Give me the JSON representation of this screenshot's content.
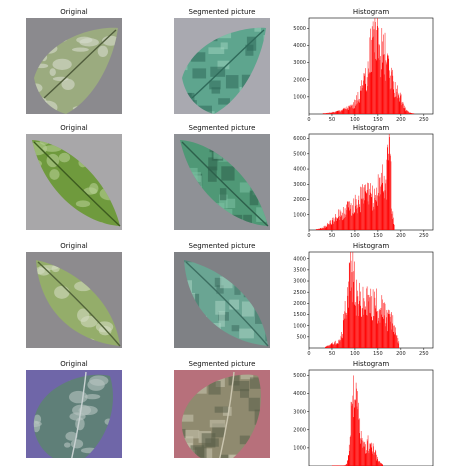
{
  "rows": [
    {
      "titles": {
        "original": "Original",
        "segmented": "Segmented picture",
        "histogram": "Histogram"
      },
      "original_style": {
        "bg": "#8b8a8e",
        "leaf": "#9bab7f",
        "vein": "#4f5c3b",
        "spot": "#d7dccd"
      },
      "segmented_style": {
        "bg": "#a9a9b0",
        "leaf": "#5ea58e",
        "vein": "#2f6a5a",
        "spot": "#9bd2bb"
      },
      "histogram": {
        "type": "bar",
        "xlim": [
          0,
          270
        ],
        "ylim": [
          0,
          5600
        ],
        "xticks": [
          0,
          50,
          100,
          150,
          200,
          250
        ],
        "yticks": [
          1000,
          2000,
          3000,
          4000,
          5000
        ],
        "peaks": [
          {
            "center": 100,
            "height": 400,
            "width": 26
          },
          {
            "center": 118,
            "height": 1100,
            "width": 10
          },
          {
            "center": 140,
            "height": 4000,
            "width": 9
          },
          {
            "center": 160,
            "height": 3100,
            "width": 10
          },
          {
            "center": 185,
            "height": 1500,
            "width": 13
          }
        ],
        "spikes": [
          {
            "x": 139,
            "value": 5400
          },
          {
            "x": 147,
            "value": 4900
          }
        ],
        "range": [
          30,
          228
        ],
        "color": "#ff0000"
      }
    },
    {
      "titles": {
        "original": "Original",
        "segmented": "Segmented picture",
        "histogram": "Histogram"
      },
      "original_style": {
        "bg": "#a8a7a9",
        "leaf": "#6f9a3d",
        "vein": "#3d5c1f",
        "spot": "#b6cf93"
      },
      "segmented_style": {
        "bg": "#8f9196",
        "leaf": "#4f9876",
        "vein": "#2d604b",
        "spot": "#7bc1a2"
      },
      "histogram": {
        "type": "bar",
        "xlim": [
          0,
          270
        ],
        "ylim": [
          0,
          6300
        ],
        "xticks": [
          0,
          50,
          100,
          150,
          200,
          250
        ],
        "yticks": [
          1000,
          2000,
          3000,
          4000,
          5000,
          6000
        ],
        "peaks": [
          {
            "center": 60,
            "height": 400,
            "width": 18
          },
          {
            "center": 95,
            "height": 1200,
            "width": 24
          },
          {
            "center": 130,
            "height": 1800,
            "width": 18
          },
          {
            "center": 160,
            "height": 2600,
            "width": 10
          },
          {
            "center": 174,
            "height": 4200,
            "width": 4
          }
        ],
        "spikes": [
          {
            "x": 175,
            "value": 6100
          },
          {
            "x": 172,
            "value": 5000
          }
        ],
        "range": [
          15,
          185
        ],
        "color": "#ff0000"
      }
    },
    {
      "titles": {
        "original": "Original",
        "segmented": "Segmented picture",
        "histogram": "Histogram"
      },
      "original_style": {
        "bg": "#8d8b8e",
        "leaf": "#94ad6a",
        "vein": "#52633a",
        "spot": "#d2dbbf"
      },
      "segmented_style": {
        "bg": "#7f8185",
        "leaf": "#6aa593",
        "vein": "#3c6e61",
        "spot": "#a7d4c3"
      },
      "histogram": {
        "type": "bar",
        "xlim": [
          0,
          270
        ],
        "ylim": [
          0,
          4300
        ],
        "xticks": [
          0,
          50,
          100,
          150,
          200,
          250
        ],
        "yticks": [
          500,
          1000,
          1500,
          2000,
          2500,
          3000,
          3500,
          4000
        ],
        "peaks": [
          {
            "center": 55,
            "height": 200,
            "width": 10
          },
          {
            "center": 90,
            "height": 3000,
            "width": 10
          },
          {
            "center": 115,
            "height": 1500,
            "width": 15
          },
          {
            "center": 150,
            "height": 1800,
            "width": 18
          },
          {
            "center": 180,
            "height": 700,
            "width": 8
          }
        ],
        "spikes": [
          {
            "x": 88,
            "value": 3800
          },
          {
            "x": 93,
            "value": 3400
          }
        ],
        "range": [
          35,
          195
        ],
        "color": "#ff0000"
      }
    },
    {
      "titles": {
        "original": "Original",
        "segmented": "Segmented picture",
        "histogram": "Histogram"
      },
      "original_style": {
        "bg": "#6f66a8",
        "leaf": "#5f7f78",
        "vein": "#c9d2d2",
        "spot": "#b8c4c2"
      },
      "segmented_style": {
        "bg": "#b7707b",
        "leaf": "#8f8a6f",
        "vein": "#cbc6b0",
        "spot": "#5a5f48"
      },
      "histogram": {
        "type": "bar",
        "xlim": [
          0,
          270
        ],
        "ylim": [
          0,
          5300
        ],
        "xticks": [],
        "yticks": [
          1000,
          2000,
          3000,
          4000,
          5000
        ],
        "peaks": [
          {
            "center": 95,
            "height": 3600,
            "width": 5
          },
          {
            "center": 105,
            "height": 2400,
            "width": 6
          },
          {
            "center": 130,
            "height": 1200,
            "width": 12
          }
        ],
        "spikes": [
          {
            "x": 96,
            "value": 5000
          },
          {
            "x": 102,
            "value": 4600
          }
        ],
        "range": [
          50,
          160
        ],
        "color": "#ff0000"
      }
    }
  ]
}
